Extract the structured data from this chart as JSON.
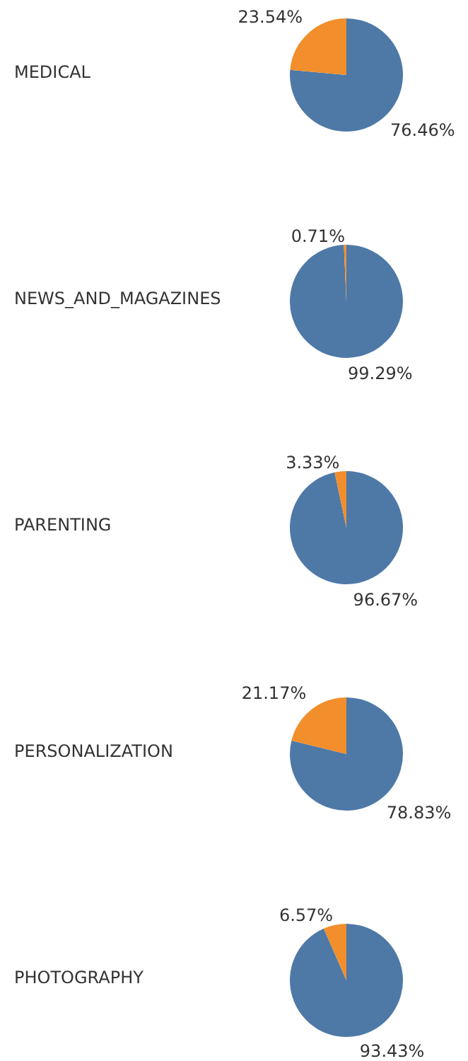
{
  "chart_data": [
    {
      "type": "pie",
      "title": "MEDICAL",
      "categories": [
        null,
        null
      ],
      "values": [
        76.46,
        23.54
      ],
      "colors": [
        "#4e79a7",
        "#f28e2b"
      ],
      "value_labels": [
        "76.46%",
        "23.54%"
      ]
    },
    {
      "type": "pie",
      "title": "NEWS_AND_MAGAZINES",
      "categories": [
        null,
        null
      ],
      "values": [
        99.29,
        0.71
      ],
      "colors": [
        "#4e79a7",
        "#f28e2b"
      ],
      "value_labels": [
        "99.29%",
        "0.71%"
      ]
    },
    {
      "type": "pie",
      "title": "PARENTING",
      "categories": [
        null,
        null
      ],
      "values": [
        96.67,
        3.33
      ],
      "colors": [
        "#4e79a7",
        "#f28e2b"
      ],
      "value_labels": [
        "96.67%",
        "3.33%"
      ]
    },
    {
      "type": "pie",
      "title": "PERSONALIZATION",
      "categories": [
        null,
        null
      ],
      "values": [
        78.83,
        21.17
      ],
      "colors": [
        "#4e79a7",
        "#f28e2b"
      ],
      "value_labels": [
        "78.83%",
        "21.17%"
      ]
    },
    {
      "type": "pie",
      "title": "PHOTOGRAPHY",
      "categories": [
        null,
        null
      ],
      "values": [
        93.43,
        6.57
      ],
      "colors": [
        "#4e79a7",
        "#f28e2b"
      ],
      "value_labels": [
        "93.43%",
        "6.57%"
      ]
    }
  ]
}
